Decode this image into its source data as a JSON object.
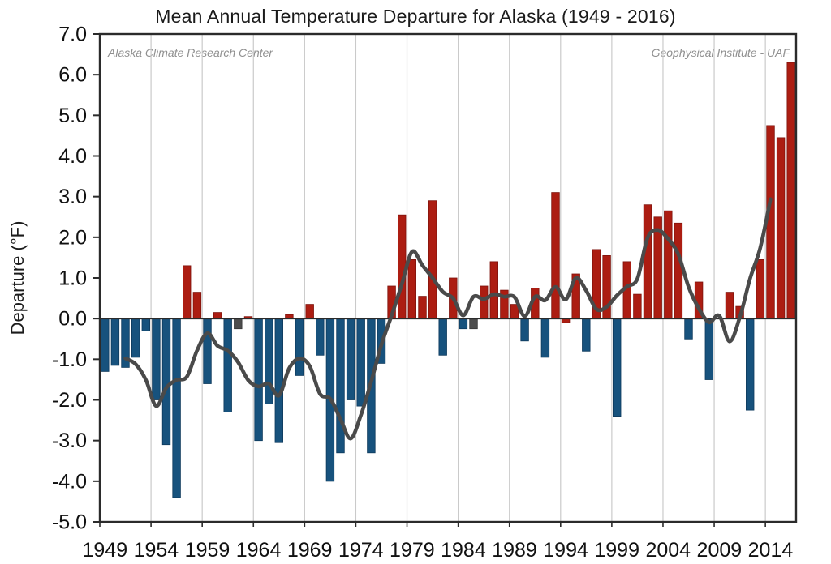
{
  "title": "Mean Annual Temperature Departure for Alaska (1949 - 2016)",
  "annotations": {
    "left": "Alaska Climate Research Center",
    "right": "Geophysical Institute - UAF"
  },
  "y_axis": {
    "label": "Departure (°F)",
    "tick_labels": [
      "7.0",
      "6.0",
      "5.0",
      "4.0",
      "3.0",
      "2.0",
      "1.0",
      "0.0",
      "-1.0",
      "-2.0",
      "-3.0",
      "-4.0",
      "-5.0"
    ],
    "max": 7.0,
    "min": -5.0
  },
  "x_axis": {
    "tick_years": [
      1949,
      1954,
      1959,
      1964,
      1969,
      1974,
      1979,
      1984,
      1989,
      1994,
      1999,
      2004,
      2009,
      2014
    ]
  },
  "chart_data": {
    "type": "bar",
    "title": "Mean Annual Temperature Departure for Alaska (1949 - 2016)",
    "xlabel": "",
    "ylabel": "Departure (°F)",
    "ylim": [
      -5.0,
      7.0
    ],
    "grid": "vertical-only",
    "legend": "none",
    "years": [
      1949,
      1950,
      1951,
      1952,
      1953,
      1954,
      1955,
      1956,
      1957,
      1958,
      1959,
      1960,
      1961,
      1962,
      1963,
      1964,
      1965,
      1966,
      1967,
      1968,
      1969,
      1970,
      1971,
      1972,
      1973,
      1974,
      1975,
      1976,
      1977,
      1978,
      1979,
      1980,
      1981,
      1982,
      1983,
      1984,
      1985,
      1986,
      1987,
      1988,
      1989,
      1990,
      1991,
      1992,
      1993,
      1994,
      1995,
      1996,
      1997,
      1998,
      1999,
      2000,
      2001,
      2002,
      2003,
      2004,
      2005,
      2006,
      2007,
      2008,
      2009,
      2010,
      2011,
      2012,
      2013,
      2014,
      2015,
      2016
    ],
    "values": [
      -1.3,
      -1.15,
      -1.2,
      -0.95,
      -0.3,
      -2.0,
      -3.1,
      -4.4,
      1.3,
      0.65,
      -1.6,
      0.15,
      -2.3,
      -0.25,
      0.05,
      -3.0,
      -2.1,
      -3.05,
      0.1,
      -1.4,
      0.35,
      -0.9,
      -4.0,
      -3.3,
      -2.0,
      -2.15,
      -3.3,
      -1.1,
      0.8,
      2.55,
      1.45,
      0.55,
      2.9,
      -0.9,
      1.0,
      -0.25,
      -0.25,
      0.8,
      1.4,
      0.7,
      0.35,
      -0.55,
      0.75,
      -0.95,
      3.1,
      -0.1,
      1.1,
      -0.8,
      1.7,
      1.55,
      -2.4,
      1.4,
      0.6,
      2.8,
      2.5,
      2.65,
      2.35,
      -0.5,
      0.9,
      -1.5,
      0.0,
      0.65,
      0.3,
      -2.25,
      1.45,
      4.75,
      4.45,
      6.3
    ],
    "bar_color_codes": [
      "b",
      "b",
      "b",
      "b",
      "b",
      "b",
      "b",
      "b",
      "r",
      "r",
      "b",
      "r",
      "b",
      "g",
      "r",
      "b",
      "b",
      "b",
      "r",
      "b",
      "r",
      "b",
      "b",
      "b",
      "b",
      "b",
      "b",
      "b",
      "r",
      "r",
      "r",
      "r",
      "r",
      "b",
      "r",
      "b",
      "g",
      "r",
      "r",
      "r",
      "r",
      "b",
      "r",
      "b",
      "r",
      "r",
      "r",
      "b",
      "r",
      "r",
      "b",
      "r",
      "r",
      "r",
      "r",
      "r",
      "r",
      "b",
      "r",
      "b",
      "n",
      "r",
      "r",
      "b",
      "r",
      "r",
      "r",
      "r"
    ],
    "palette": {
      "r": "#ac1d12",
      "b": "#17527d",
      "g": "#4d4d4d",
      "edge_r": "#7e130c",
      "edge_b": "#0e3a5c",
      "edge_g": "#363636"
    },
    "smoothed": {
      "name": "5-year running mean",
      "color": "#4a4a4a",
      "years_start": 1951,
      "years_end": 2014,
      "values": [
        -0.98,
        -1.12,
        -1.51,
        -2.15,
        -1.7,
        -1.51,
        -1.43,
        -0.78,
        -0.36,
        -0.67,
        -0.79,
        -1.07,
        -1.52,
        -1.67,
        -1.6,
        -1.89,
        -1.22,
        -0.98,
        -1.17,
        -1.85,
        -1.97,
        -2.47,
        -2.95,
        -2.37,
        -1.55,
        -0.64,
        0.08,
        0.85,
        1.65,
        1.31,
        1.0,
        0.66,
        0.5,
        0.08,
        0.54,
        0.48,
        0.6,
        0.54,
        0.53,
        0.06,
        0.54,
        0.45,
        0.78,
        0.47,
        1.0,
        0.69,
        0.23,
        0.29,
        0.57,
        0.79,
        0.98,
        1.99,
        2.18,
        1.96,
        1.58,
        0.78,
        0.25,
        -0.09,
        0.07,
        -0.56,
        0.03,
        0.98,
        1.74,
        2.94
      ]
    },
    "style_colors": {
      "gridline": "#cacaca",
      "axis": "#2b2b2b",
      "tick_text": "#111111"
    }
  }
}
